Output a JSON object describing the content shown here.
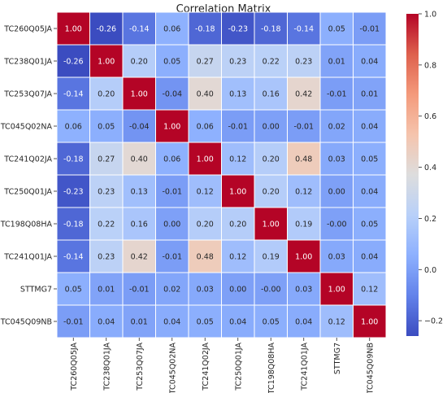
{
  "chart_data": {
    "type": "heatmap",
    "title": "Correlation Matrix",
    "labels": [
      "TC260Q05JA",
      "TC238Q01JA",
      "TC253Q07JA",
      "TC045Q02NA",
      "TC241Q02JA",
      "TC250Q01JA",
      "TC198Q08HA",
      "TC241Q01JA",
      "STTMG7",
      "TC045Q09NB"
    ],
    "display": [
      [
        "1.00",
        "-0.26",
        "-0.14",
        "0.06",
        "-0.18",
        "-0.23",
        "-0.18",
        "-0.14",
        "0.05",
        "-0.01"
      ],
      [
        "-0.26",
        "1.00",
        "0.20",
        "0.05",
        "0.27",
        "0.23",
        "0.22",
        "0.23",
        "0.01",
        "0.04"
      ],
      [
        "-0.14",
        "0.20",
        "1.00",
        "-0.04",
        "0.40",
        "0.13",
        "0.16",
        "0.42",
        "-0.01",
        "0.01"
      ],
      [
        "0.06",
        "0.05",
        "-0.04",
        "1.00",
        "0.06",
        "-0.01",
        "0.00",
        "-0.01",
        "0.02",
        "0.04"
      ],
      [
        "-0.18",
        "0.27",
        "0.40",
        "0.06",
        "1.00",
        "0.12",
        "0.20",
        "0.48",
        "0.03",
        "0.05"
      ],
      [
        "-0.23",
        "0.23",
        "0.13",
        "-0.01",
        "0.12",
        "1.00",
        "0.20",
        "0.12",
        "0.00",
        "0.04"
      ],
      [
        "-0.18",
        "0.22",
        "0.16",
        "0.00",
        "0.20",
        "0.20",
        "1.00",
        "0.19",
        "-0.00",
        "0.05"
      ],
      [
        "-0.14",
        "0.23",
        "0.42",
        "-0.01",
        "0.48",
        "0.12",
        "0.19",
        "1.00",
        "0.03",
        "0.04"
      ],
      [
        "0.05",
        "0.01",
        "-0.01",
        "0.02",
        "0.03",
        "0.00",
        "-0.00",
        "0.03",
        "1.00",
        "0.12"
      ],
      [
        "-0.01",
        "0.04",
        "0.01",
        "0.04",
        "0.05",
        "0.04",
        "0.05",
        "0.04",
        "0.12",
        "1.00"
      ]
    ],
    "colorbar": {
      "range": [
        -0.26,
        1.0
      ],
      "ticks": [
        -0.2,
        0.0,
        0.2,
        0.4,
        0.6,
        0.8,
        1.0
      ],
      "tick_labels": [
        "−0.2",
        "0.0",
        "0.2",
        "0.4",
        "0.6",
        "0.8",
        "1.0"
      ],
      "colormap": "coolwarm"
    },
    "grid_lines": true,
    "cell_border_color": "#ffffff"
  }
}
